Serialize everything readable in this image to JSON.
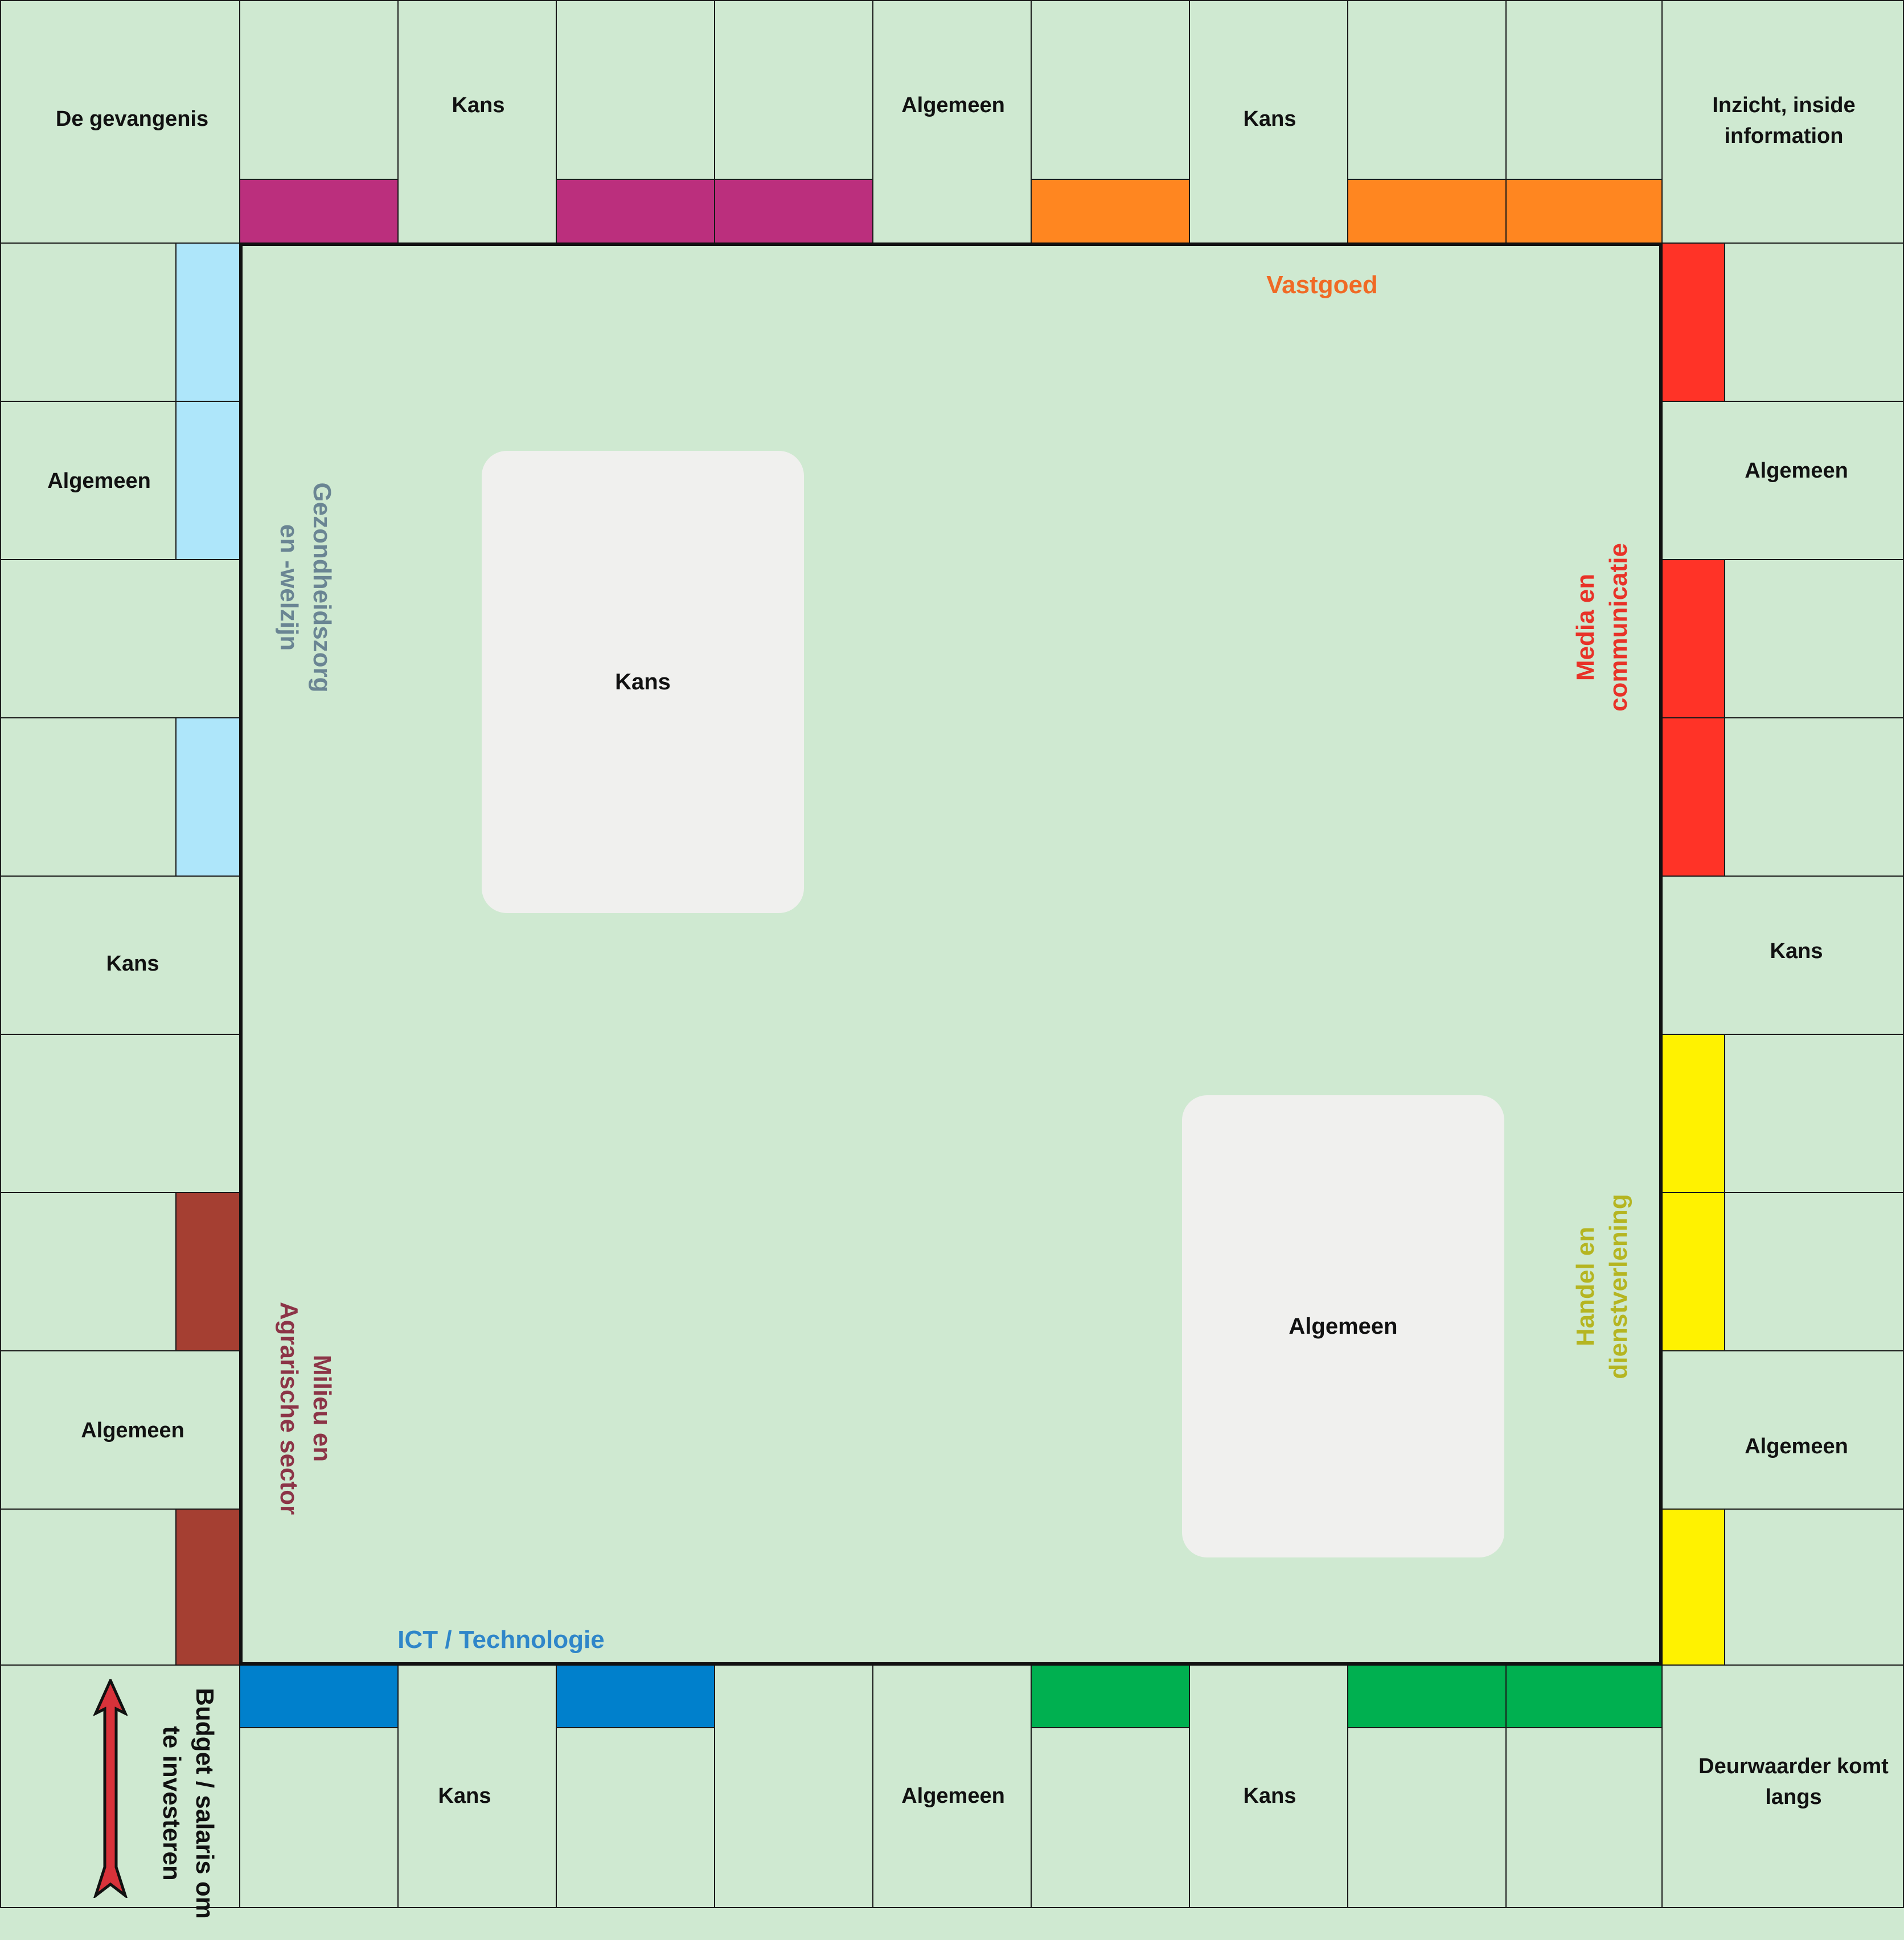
{
  "corners": {
    "top_left": "De gevangenis",
    "top_right_line1": "Inzicht, inside",
    "top_right_line2": "information",
    "bottom_right_line1": "Deurwaarder komt",
    "bottom_right_line2": "langs",
    "bottom_left_line1": "Budget / salaris om",
    "bottom_left_line2": "te investeren"
  },
  "top_row": [
    "",
    "Kans",
    "",
    "",
    "Algemeen",
    "",
    "Kans",
    "",
    ""
  ],
  "bottom_row": [
    "",
    "Kans",
    "",
    "",
    "Algemeen",
    "",
    "Kans",
    "",
    ""
  ],
  "left_col": [
    "",
    "Algemeen",
    "",
    "",
    "Kans",
    "",
    "",
    "Algemeen",
    ""
  ],
  "right_col": [
    "",
    "Algemeen",
    "",
    "",
    "Kans",
    "",
    "",
    "Algemeen",
    ""
  ],
  "decks": {
    "chance": "Kans",
    "general": "Algemeen"
  },
  "groups": {
    "real_estate": "Vastgoed",
    "media_line1": "Media en",
    "media_line2": "communicatie",
    "trade_line1": "Handel en",
    "trade_line2": "dienstverlening",
    "health_line1": "Gezondheidszorg",
    "health_line2": "en -welzijn",
    "environment_line1": "Milieu en",
    "environment_line2": "Agrarische sector",
    "ict": "ICT / Technologie"
  },
  "colors": {
    "board_bg": "#cfe9d1",
    "purple": "#bb2f7d",
    "orange": "#ff8620",
    "red": "#ff3327",
    "yellow": "#fff200",
    "green": "#00b050",
    "blue": "#0080cc",
    "light_blue": "#aee6fa",
    "brown": "#a53f32",
    "label_orange": "#f06a25",
    "label_red": "#e83228",
    "label_yellow": "#b5b521",
    "label_slate": "#6a8593",
    "label_maroon": "#8c3447",
    "label_blue": "#2f86c9",
    "deck_bg": "#f0f0ee",
    "arrow": "#d8323a"
  },
  "icons": {
    "start_arrow": "up-arrow-icon"
  }
}
